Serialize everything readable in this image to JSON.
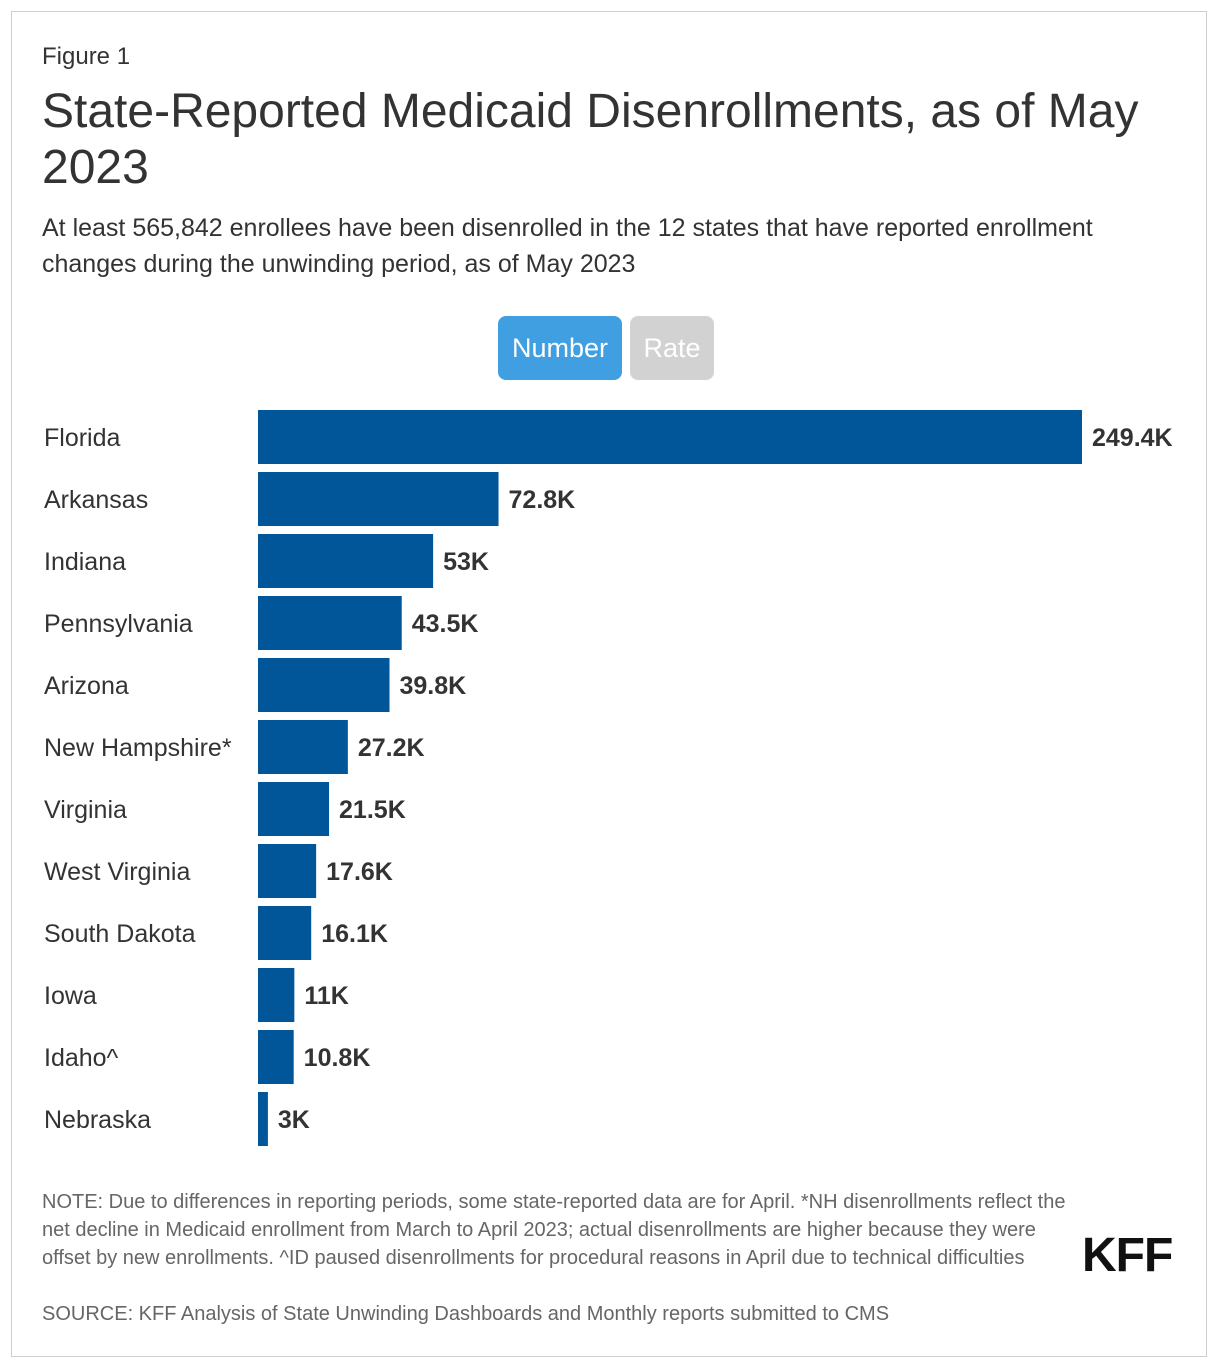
{
  "figure_label": "Figure 1",
  "title": "State-Reported Medicaid Disenrollments, as of May 2023",
  "subtitle": "At least 565,842 enrollees have been disenrolled in the 12 states that have reported enrollment changes during the unwinding period, as of May 2023",
  "toggles": {
    "number_label": "Number",
    "rate_label": "Rate",
    "selected": "Number"
  },
  "colors": {
    "bar": "#005699",
    "toggle_active": "#3f9fe0",
    "toggle_inactive": "#d2d2d2"
  },
  "chart_data": {
    "type": "bar",
    "orientation": "horizontal",
    "categories": [
      "Florida",
      "Arkansas",
      "Indiana",
      "Pennsylvania",
      "Arizona",
      "New Hampshire*",
      "Virginia",
      "West Virginia",
      "South Dakota",
      "Iowa",
      "Idaho^",
      "Nebraska"
    ],
    "values": [
      249400,
      72800,
      53000,
      43500,
      39800,
      27200,
      21500,
      17600,
      16100,
      11000,
      10800,
      3000
    ],
    "labels": [
      "249.4K",
      "72.8K",
      "53K",
      "43.5K",
      "39.8K",
      "27.2K",
      "21.5K",
      "17.6K",
      "16.1K",
      "11K",
      "10.8K",
      "3K"
    ],
    "xlim": [
      0,
      249400
    ],
    "grid": false,
    "legend": "none"
  },
  "note": "NOTE: Due to differences in reporting periods, some state-reported data are for April. *NH disenrollments reflect the net decline in Medicaid enrollment from March to April 2023; actual disenrollments are higher because they were offset by new enrollments. ^ID paused disenrollments for procedural reasons in April due to technical difficulties",
  "source": "SOURCE: KFF Analysis of State Unwinding Dashboards and Monthly reports submitted to CMS",
  "logo": "KFF"
}
